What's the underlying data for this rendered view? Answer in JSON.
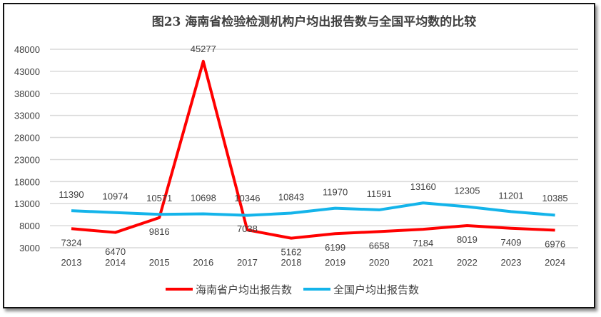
{
  "chart_data": {
    "type": "line",
    "title": "图23  海南省检验检测机构户均出报告数与全国平均数的比较",
    "categories": [
      "2013",
      "2014",
      "2015",
      "2016",
      "2017",
      "2018",
      "2019",
      "2020",
      "2021",
      "2022",
      "2023",
      "2024"
    ],
    "series": [
      {
        "name": "海南省户均出报告数",
        "color": "#ff0000",
        "values": [
          7324,
          6470,
          9816,
          45277,
          7038,
          5162,
          6199,
          6658,
          7184,
          8019,
          7409,
          6976
        ]
      },
      {
        "name": "全国户均出报告数",
        "color": "#14b4ea",
        "values": [
          11390,
          10974,
          10571,
          10698,
          10346,
          10843,
          11970,
          11591,
          13160,
          12305,
          11201,
          10385
        ]
      }
    ],
    "yticks": [
      3000,
      8000,
      13000,
      18000,
      23000,
      28000,
      33000,
      38000,
      43000,
      48000
    ],
    "ylim": [
      3000,
      48000
    ],
    "grid": true,
    "legend": "bottom",
    "data_labels": true
  }
}
